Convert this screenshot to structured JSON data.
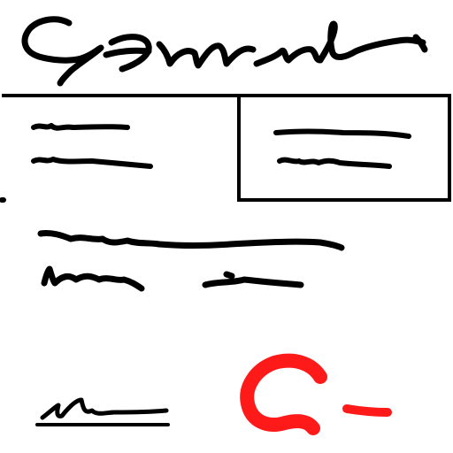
{
  "page": {
    "background": "#ffffff",
    "ink_color": "#000000",
    "accent_color": "#ff1a1a"
  },
  "header": {
    "title_scribble": "handwritten-title"
  },
  "left_block": {
    "line_count": 2
  },
  "right_box": {
    "line_count": 2
  },
  "body_text": {
    "line_count": 2
  },
  "footer": {
    "signature_scribble": "handwritten-signature",
    "grade_text": "C-",
    "grade_color": "#ff1a1a"
  }
}
